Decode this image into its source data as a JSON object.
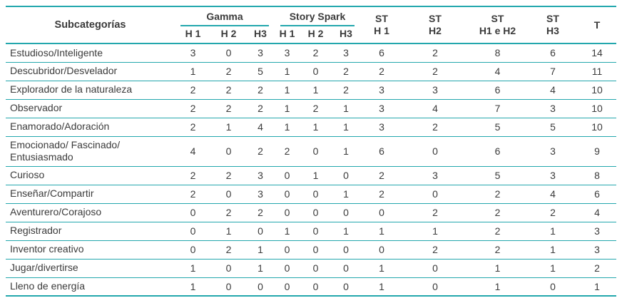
{
  "colors": {
    "accent": "#23a7ad",
    "text": "#3b3b3b"
  },
  "chart_data": {
    "type": "table",
    "title": "",
    "corner_header": "Subcategorías",
    "column_groups": [
      {
        "label": "Gamma",
        "sub": [
          "H 1",
          "H 2",
          "H3"
        ]
      },
      {
        "label": "Story Spark",
        "sub": [
          "H 1",
          "H 2",
          "H3"
        ]
      }
    ],
    "st_columns": [
      {
        "line1": "ST",
        "line2": "H 1"
      },
      {
        "line1": "ST",
        "line2": "H2"
      },
      {
        "line1": "ST",
        "line2": "H1 e H2"
      },
      {
        "line1": "ST",
        "line2": "H3"
      }
    ],
    "total_header": "T",
    "columns_flat": [
      "Subcategorías",
      "Gamma H 1",
      "Gamma H 2",
      "Gamma H3",
      "Story Spark H 1",
      "Story Spark H 2",
      "Story Spark H3",
      "ST H 1",
      "ST H2",
      "ST H1 e H2",
      "ST H3",
      "T"
    ],
    "rows": [
      {
        "label": "Estudioso/Inteligente",
        "values": [
          3,
          0,
          3,
          3,
          2,
          3,
          6,
          2,
          8,
          6,
          14
        ]
      },
      {
        "label": "Descubridor/Desvelador",
        "values": [
          1,
          2,
          5,
          1,
          0,
          2,
          2,
          2,
          4,
          7,
          11
        ]
      },
      {
        "label": "Explorador de la naturaleza",
        "values": [
          2,
          2,
          2,
          1,
          1,
          2,
          3,
          3,
          6,
          4,
          10
        ]
      },
      {
        "label": "Observador",
        "values": [
          2,
          2,
          2,
          1,
          2,
          1,
          3,
          4,
          7,
          3,
          10
        ]
      },
      {
        "label": "Enamorado/Adoración",
        "values": [
          2,
          1,
          4,
          1,
          1,
          1,
          3,
          2,
          5,
          5,
          10
        ]
      },
      {
        "label": "Emocionado/ Fascinado/ Entusiasmado",
        "values": [
          4,
          0,
          2,
          2,
          0,
          1,
          6,
          0,
          6,
          3,
          9
        ]
      },
      {
        "label": "Curioso",
        "values": [
          2,
          2,
          3,
          0,
          1,
          0,
          2,
          3,
          5,
          3,
          8
        ]
      },
      {
        "label": "Enseñar/Compartir",
        "values": [
          2,
          0,
          3,
          0,
          0,
          1,
          2,
          0,
          2,
          4,
          6
        ]
      },
      {
        "label": "Aventurero/Corajoso",
        "values": [
          0,
          2,
          2,
          0,
          0,
          0,
          0,
          2,
          2,
          2,
          4
        ]
      },
      {
        "label": "Registrador",
        "values": [
          0,
          1,
          0,
          1,
          0,
          1,
          1,
          1,
          2,
          1,
          3
        ]
      },
      {
        "label": "Inventor creativo",
        "values": [
          0,
          2,
          1,
          0,
          0,
          0,
          0,
          2,
          2,
          1,
          3
        ]
      },
      {
        "label": "Jugar/divertirse",
        "values": [
          1,
          0,
          1,
          0,
          0,
          0,
          1,
          0,
          1,
          1,
          2
        ]
      },
      {
        "label": "Lleno de energía",
        "values": [
          1,
          0,
          0,
          0,
          0,
          0,
          1,
          0,
          1,
          0,
          1
        ]
      }
    ]
  }
}
